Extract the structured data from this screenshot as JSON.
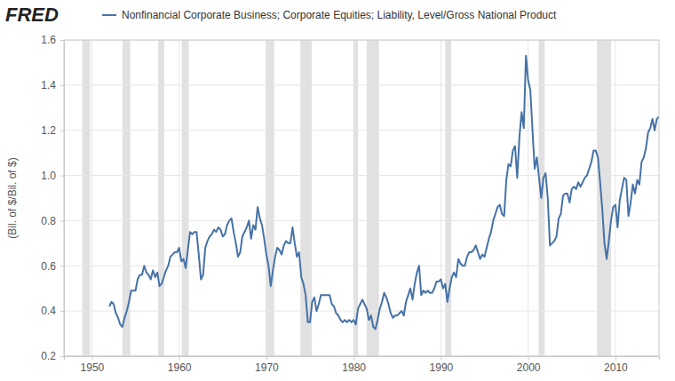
{
  "chart_data": {
    "type": "line",
    "source": "FRED",
    "y_label": "(Bil. of $/Bil. of $)",
    "xlim": [
      1946.8,
      2015
    ],
    "xticks": [
      1950,
      1960,
      1970,
      1980,
      1990,
      2000,
      2010
    ],
    "ylim": [
      0.2,
      1.6
    ],
    "yticks": [
      0.2,
      0.4,
      0.6,
      0.8,
      {
        "value": 1,
        "label": "1.0"
      },
      1.2,
      1.4,
      1.6
    ],
    "grid": true,
    "recessions": [
      [
        1948.9,
        1949.8
      ],
      [
        1953.5,
        1954.4
      ],
      [
        1957.6,
        1958.3
      ],
      [
        1960.3,
        1961.1
      ],
      [
        1969.9,
        1970.9
      ],
      [
        1973.9,
        1975.2
      ],
      [
        1980.0,
        1980.5
      ],
      [
        1981.5,
        1982.9
      ],
      [
        1990.5,
        1991.2
      ],
      [
        2001.2,
        2001.9
      ],
      [
        2007.9,
        2009.5
      ]
    ],
    "x": [
      1952,
      1952.25,
      1952.5,
      1952.75,
      1953,
      1953.25,
      1953.5,
      1953.75,
      1954,
      1954.25,
      1954.5,
      1954.75,
      1955,
      1955.25,
      1955.5,
      1955.75,
      1956,
      1956.25,
      1956.5,
      1956.75,
      1957,
      1957.25,
      1957.5,
      1957.75,
      1958,
      1958.25,
      1958.5,
      1958.75,
      1959,
      1959.25,
      1959.5,
      1959.75,
      1960,
      1960.25,
      1960.5,
      1960.75,
      1961,
      1961.25,
      1961.5,
      1961.75,
      1962,
      1962.25,
      1962.5,
      1962.75,
      1963,
      1963.25,
      1963.5,
      1963.75,
      1964,
      1964.25,
      1964.5,
      1964.75,
      1965,
      1965.25,
      1965.5,
      1965.75,
      1966,
      1966.25,
      1966.5,
      1966.75,
      1967,
      1967.25,
      1967.5,
      1967.75,
      1968,
      1968.25,
      1968.5,
      1968.75,
      1969,
      1969.25,
      1969.5,
      1969.75,
      1970,
      1970.25,
      1970.5,
      1970.75,
      1971,
      1971.25,
      1971.5,
      1971.75,
      1972,
      1972.25,
      1972.5,
      1972.75,
      1973,
      1973.25,
      1973.5,
      1973.75,
      1974,
      1974.25,
      1974.5,
      1974.75,
      1975,
      1975.25,
      1975.5,
      1975.75,
      1976,
      1976.25,
      1976.5,
      1976.75,
      1977,
      1977.25,
      1977.5,
      1977.75,
      1978,
      1978.25,
      1978.5,
      1978.75,
      1979,
      1979.25,
      1979.5,
      1979.75,
      1980,
      1980.25,
      1980.5,
      1980.75,
      1981,
      1981.25,
      1981.5,
      1981.75,
      1982,
      1982.25,
      1982.5,
      1982.75,
      1983,
      1983.25,
      1983.5,
      1983.75,
      1984,
      1984.25,
      1984.5,
      1984.75,
      1985,
      1985.25,
      1985.5,
      1985.75,
      1986,
      1986.25,
      1986.5,
      1986.75,
      1987,
      1987.25,
      1987.5,
      1987.75,
      1988,
      1988.25,
      1988.5,
      1988.75,
      1989,
      1989.25,
      1989.5,
      1989.75,
      1990,
      1990.25,
      1990.5,
      1990.75,
      1991,
      1991.25,
      1991.5,
      1991.75,
      1992,
      1992.25,
      1992.5,
      1992.75,
      1993,
      1993.25,
      1993.5,
      1993.75,
      1994,
      1994.25,
      1994.5,
      1994.75,
      1995,
      1995.25,
      1995.5,
      1995.75,
      1996,
      1996.25,
      1996.5,
      1996.75,
      1997,
      1997.25,
      1997.5,
      1997.75,
      1998,
      1998.25,
      1998.5,
      1998.75,
      1999,
      1999.25,
      1999.5,
      1999.75,
      2000,
      2000.25,
      2000.5,
      2000.75,
      2001,
      2001.25,
      2001.5,
      2001.75,
      2002,
      2002.25,
      2002.5,
      2002.75,
      2003,
      2003.25,
      2003.5,
      2003.75,
      2004,
      2004.25,
      2004.5,
      2004.75,
      2005,
      2005.25,
      2005.5,
      2005.75,
      2006,
      2006.25,
      2006.5,
      2006.75,
      2007,
      2007.25,
      2007.5,
      2007.75,
      2008,
      2008.25,
      2008.5,
      2008.75,
      2009,
      2009.25,
      2009.5,
      2009.75,
      2010,
      2010.25,
      2010.5,
      2010.75,
      2011,
      2011.25,
      2011.5,
      2011.75,
      2012,
      2012.25,
      2012.5,
      2012.75,
      2013,
      2013.25,
      2013.5,
      2013.75,
      2014,
      2014.25,
      2014.5,
      2014.75,
      2015
    ],
    "series": [
      {
        "name": "Nonfinancial Corporate Business; Corporate Equities; Liability, Level/Gross National Product",
        "color": "#4572a7",
        "values": [
          0.42,
          0.44,
          0.43,
          0.39,
          0.37,
          0.34,
          0.33,
          0.37,
          0.4,
          0.44,
          0.49,
          0.49,
          0.49,
          0.54,
          0.56,
          0.56,
          0.6,
          0.57,
          0.56,
          0.54,
          0.58,
          0.55,
          0.57,
          0.51,
          0.52,
          0.55,
          0.58,
          0.6,
          0.64,
          0.65,
          0.66,
          0.66,
          0.68,
          0.62,
          0.63,
          0.59,
          0.67,
          0.75,
          0.74,
          0.75,
          0.75,
          0.65,
          0.54,
          0.56,
          0.68,
          0.71,
          0.73,
          0.74,
          0.76,
          0.75,
          0.77,
          0.76,
          0.73,
          0.74,
          0.78,
          0.8,
          0.81,
          0.75,
          0.7,
          0.64,
          0.66,
          0.73,
          0.75,
          0.77,
          0.8,
          0.72,
          0.78,
          0.76,
          0.86,
          0.81,
          0.78,
          0.72,
          0.65,
          0.6,
          0.51,
          0.58,
          0.64,
          0.68,
          0.67,
          0.65,
          0.69,
          0.71,
          0.7,
          0.7,
          0.77,
          0.7,
          0.64,
          0.66,
          0.55,
          0.52,
          0.47,
          0.35,
          0.35,
          0.44,
          0.46,
          0.4,
          0.43,
          0.47,
          0.47,
          0.47,
          0.47,
          0.47,
          0.43,
          0.42,
          0.39,
          0.38,
          0.36,
          0.35,
          0.36,
          0.35,
          0.36,
          0.35,
          0.36,
          0.34,
          0.41,
          0.43,
          0.45,
          0.43,
          0.41,
          0.36,
          0.38,
          0.33,
          0.32,
          0.36,
          0.41,
          0.44,
          0.48,
          0.46,
          0.43,
          0.39,
          0.37,
          0.38,
          0.38,
          0.39,
          0.4,
          0.38,
          0.44,
          0.47,
          0.5,
          0.45,
          0.52,
          0.57,
          0.6,
          0.47,
          0.49,
          0.48,
          0.49,
          0.48,
          0.48,
          0.5,
          0.53,
          0.53,
          0.54,
          0.5,
          0.52,
          0.44,
          0.5,
          0.55,
          0.57,
          0.55,
          0.63,
          0.61,
          0.6,
          0.6,
          0.64,
          0.66,
          0.66,
          0.67,
          0.69,
          0.66,
          0.63,
          0.65,
          0.64,
          0.68,
          0.72,
          0.75,
          0.8,
          0.83,
          0.86,
          0.87,
          0.83,
          0.82,
          0.98,
          1.05,
          1.04,
          1.11,
          1.13,
          0.99,
          1.17,
          1.28,
          1.21,
          1.53,
          1.42,
          1.38,
          1.2,
          1.03,
          1.08,
          0.99,
          0.9,
          0.99,
          1.01,
          0.9,
          0.69,
          0.7,
          0.71,
          0.73,
          0.81,
          0.83,
          0.91,
          0.92,
          0.92,
          0.88,
          0.94,
          0.95,
          0.94,
          0.97,
          0.95,
          0.97,
          0.99,
          1.0,
          1.03,
          1.06,
          1.11,
          1.11,
          1.08,
          0.97,
          0.85,
          0.7,
          0.63,
          0.71,
          0.8,
          0.86,
          0.87,
          0.77,
          0.89,
          0.94,
          0.99,
          0.98,
          0.82,
          0.88,
          0.96,
          0.92,
          0.98,
          0.96,
          1.06,
          1.08,
          1.12,
          1.19,
          1.21,
          1.25,
          1.2,
          1.25,
          1.26
        ]
      }
    ]
  }
}
